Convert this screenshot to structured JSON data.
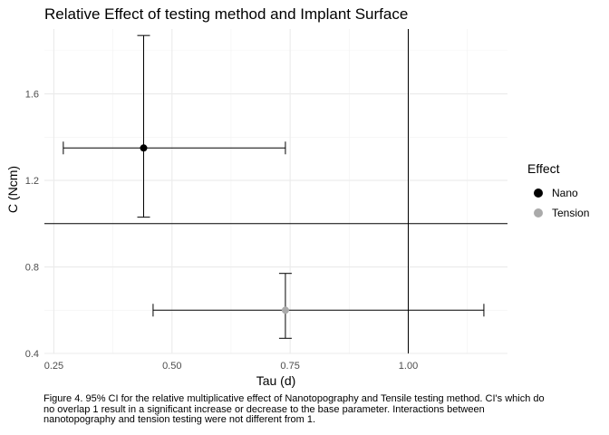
{
  "title": "Relative Effect of testing method and Implant Surface",
  "caption": "Figure 4. 95% CI for the relative multiplicative effect of Nanotopography and Tensile testing method. CI's which do no overlap 1 result in a significant increase or decrease to the base parameter. Interactions between nanotopography and tension testing were not different from 1.",
  "chart_data": {
    "type": "scatter",
    "title": "Relative Effect of testing method and Implant Surface",
    "xlabel": "Tau (d)",
    "ylabel": "C (Ncm)",
    "xlim": [
      0.23,
      1.21
    ],
    "ylim": [
      0.4,
      1.9
    ],
    "x_ticks": [
      0.25,
      0.5,
      0.75,
      1.0
    ],
    "x_tick_labels": [
      "0.25",
      "0.50",
      "0.75",
      "1.00"
    ],
    "y_ticks": [
      0.4,
      0.8,
      1.2,
      1.6
    ],
    "y_tick_labels": [
      "0.4",
      "0.8",
      "1.2",
      "1.6"
    ],
    "reference_lines": {
      "x": 1.0,
      "y": 1.0
    },
    "grid": true,
    "legend_title": "Effect",
    "legend_position": "right",
    "series": [
      {
        "name": "Nano",
        "color": "#000000",
        "x": 0.44,
        "y": 1.35,
        "x_lo": 0.27,
        "x_hi": 0.74,
        "y_lo": 1.03,
        "y_hi": 1.87
      },
      {
        "name": "Tension",
        "color": "#aaaaaa",
        "x": 0.74,
        "y": 0.6,
        "x_lo": 0.46,
        "x_hi": 1.16,
        "y_lo": 0.47,
        "y_hi": 0.77
      }
    ]
  }
}
